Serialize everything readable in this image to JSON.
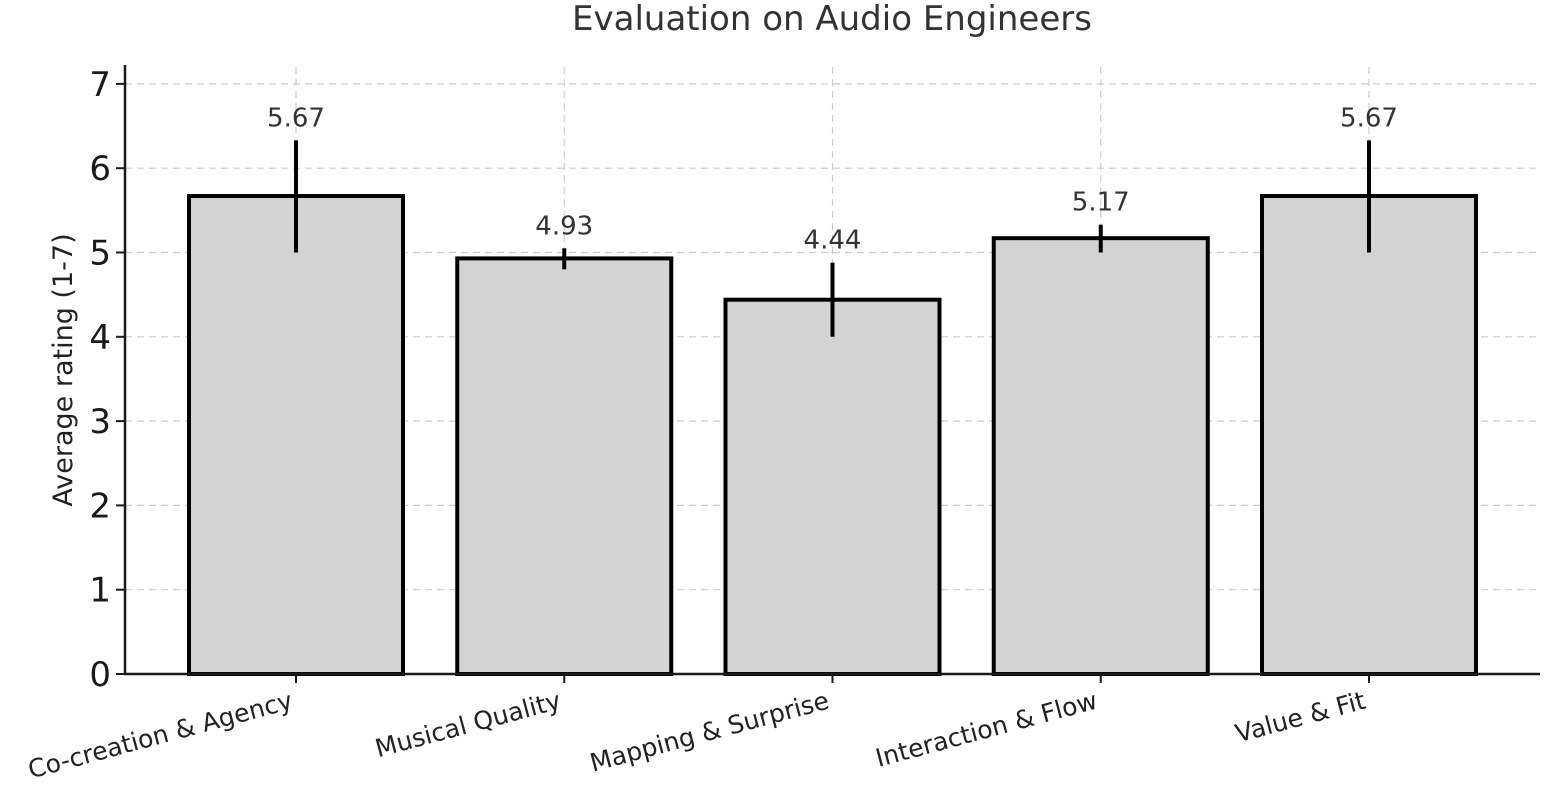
{
  "chart_data": {
    "type": "bar",
    "title": "Evaluation on Audio Engineers",
    "xlabel": "",
    "ylabel": "Average rating (1-7)",
    "ylim": [
      0,
      7.2
    ],
    "yticks": [
      0,
      1,
      2,
      3,
      4,
      5,
      6,
      7
    ],
    "ytick_labels": [
      "0",
      "1",
      "2",
      "3",
      "4",
      "5",
      "6",
      "7"
    ],
    "grid": true,
    "categories": [
      "Co-creation & Agency",
      "Musical Quality",
      "Mapping & Surprise",
      "Interaction & Flow",
      "Value & Fit"
    ],
    "values": [
      5.67,
      4.93,
      4.44,
      5.17,
      5.67
    ],
    "value_labels": [
      "5.67",
      "4.93",
      "4.44",
      "5.17",
      "5.67"
    ],
    "error_lower": [
      5.0,
      4.8,
      4.0,
      5.0,
      5.0
    ],
    "error_upper": [
      6.33,
      5.05,
      4.88,
      5.33,
      6.33
    ],
    "xtick_rotation_deg": 15,
    "colors": {
      "bar_fill": "#d3d3d3",
      "bar_edge": "#000000",
      "error_bar": "#000000",
      "grid": "#cccccc",
      "text": "#333333"
    }
  }
}
